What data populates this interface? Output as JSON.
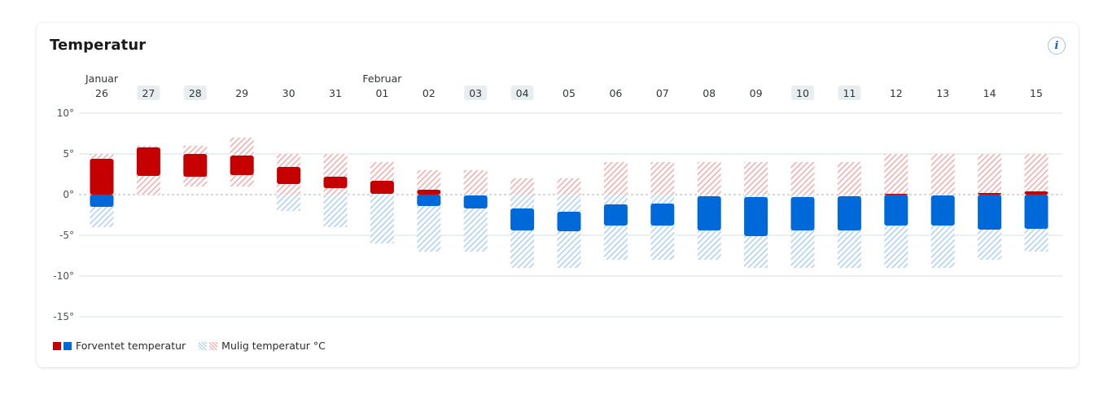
{
  "card": {
    "title": "Temperatur",
    "info_icon": "i"
  },
  "legend": {
    "expected_label": "Forventet temperatur",
    "possible_label": "Mulig temperatur °C"
  },
  "colors": {
    "warm_solid": "#c60000",
    "cold_solid": "#0069d9",
    "warm_hatch": "#f0b6b6",
    "cold_hatch": "#b7d5f2",
    "gridline": "#d9dfe2",
    "highlight_day_bg": "#e8edf0"
  },
  "chart_data": {
    "type": "bar",
    "title": "Temperatur",
    "ylabel": "",
    "xlabel": "",
    "ylim": [
      -15,
      10
    ],
    "yticks": [
      10,
      5,
      0,
      -5,
      -10,
      -15
    ],
    "ytick_labels": [
      "10°",
      "5°",
      "0°",
      "-5°",
      "-10°",
      "-15°"
    ],
    "grid": true,
    "legend_position": "bottom-left",
    "month_labels": [
      {
        "at_index": 0,
        "label": "Januar"
      },
      {
        "at_index": 6,
        "label": "Februar"
      }
    ],
    "categories": [
      "26",
      "27",
      "28",
      "29",
      "30",
      "31",
      "01",
      "02",
      "03",
      "04",
      "05",
      "06",
      "07",
      "08",
      "09",
      "10",
      "11",
      "12",
      "13",
      "14",
      "15"
    ],
    "highlighted_days": [
      "27",
      "28",
      "03",
      "04",
      "10",
      "11"
    ],
    "series": [
      {
        "name": "Forventet temperatur",
        "type": "range",
        "low": [
          -1.5,
          2.3,
          2.2,
          2.4,
          1.3,
          0.8,
          0.1,
          -1.4,
          -1.7,
          -4.4,
          -4.5,
          -3.8,
          -3.8,
          -4.4,
          -5.1,
          -4.4,
          -4.4,
          -3.8,
          -3.8,
          -4.3,
          -4.2
        ],
        "high": [
          4.4,
          5.8,
          5.0,
          4.8,
          3.4,
          2.2,
          1.7,
          0.6,
          -0.1,
          -1.7,
          -2.1,
          -1.2,
          -1.1,
          -0.2,
          -0.3,
          -0.3,
          -0.2,
          0.1,
          -0.1,
          0.2,
          0.4
        ]
      },
      {
        "name": "Mulig temperatur °C",
        "type": "range",
        "low": [
          -4,
          0,
          1,
          1,
          -2,
          -4,
          -6,
          -7,
          -7,
          -9,
          -9,
          -8,
          -8,
          -8,
          -9,
          -9,
          -9,
          -9,
          -9,
          -8,
          -7
        ],
        "high": [
          5,
          6,
          6,
          7,
          5,
          5,
          4,
          3,
          3,
          2,
          2,
          4,
          4,
          4,
          4,
          4,
          4,
          5,
          5,
          5,
          5
        ]
      }
    ]
  }
}
